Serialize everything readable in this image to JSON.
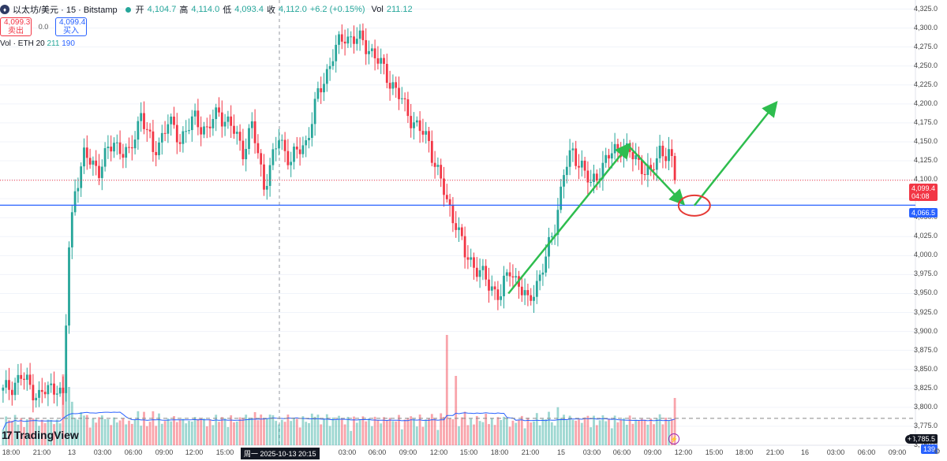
{
  "header": {
    "symbol_glyph": "♦",
    "title": "以太坊/美元 · 15 · Bitstamp",
    "open_label": "开",
    "open": "4,104.7",
    "high_label": "高",
    "high": "4,114.0",
    "low_label": "低",
    "low": "4,093.4",
    "close_label": "收",
    "close": "4,112.0",
    "change": "+6.2 (+0.15%)",
    "vol_label": "Vol",
    "vol": "211.12"
  },
  "trade": {
    "sell_price": "4,099.3",
    "sell_label": "卖出",
    "spread": "0.0",
    "buy_price": "4,099.4",
    "buy_label": "买入"
  },
  "volume_indicator": {
    "label": "Vol · ETH 20",
    "value1": "211",
    "value2": "190"
  },
  "watermark": {
    "logo": "17",
    "text": "TradingView"
  },
  "axis": {
    "y_ticks": [
      "4,325.0",
      "4,300.0",
      "4,275.0",
      "4,250.0",
      "4,225.0",
      "4,200.0",
      "4,175.0",
      "4,150.0",
      "4,125.0",
      "4,100.0",
      "4,075.0",
      "4,050.0",
      "4,025.0",
      "4,000.0",
      "3,975.0",
      "3,950.0",
      "3,925.0",
      "3,900.0",
      "3,875.0",
      "3,850.0",
      "3,825.0",
      "3,800.0",
      "3,775.0",
      "3,750.0"
    ],
    "x_ticks": [
      "18:00",
      "21:00",
      "13",
      "03:00",
      "06:00",
      "09:00",
      "12:00",
      "15:00",
      "03:00",
      "06:00",
      "09:00",
      "12:00",
      "15:00",
      "18:00",
      "21:00",
      "15",
      "03:00",
      "06:00",
      "09:00",
      "12:00",
      "15:00",
      "18:00",
      "21:00",
      "16",
      "03:00",
      "06:00",
      "09:00"
    ],
    "cursor_date": "周一 2025-10-13  20:15"
  },
  "price_tags": {
    "last_price": "4,099.4",
    "countdown": "04:08",
    "line_price": "4,066.5",
    "cursor_price": "3,785.5",
    "vol_tag": "139"
  },
  "colors": {
    "up": "#26a69a",
    "down": "#f23645",
    "hline": "#2962ff",
    "arrow": "#2ebd4e",
    "circle": "#e53935",
    "vol_ma": "#2962ff"
  },
  "chart_data": {
    "type": "candlestick",
    "symbol": "以太坊/美元",
    "interval": "15",
    "exchange": "Bitstamp",
    "y_range": [
      3750,
      4337
    ],
    "x_tick_labels": [
      "18:00",
      "21:00",
      "13",
      "03:00",
      "06:00",
      "09:00",
      "12:00",
      "15:00",
      "03:00",
      "06:00",
      "09:00",
      "12:00",
      "15:00",
      "18:00",
      "21:00",
      "15",
      "03:00",
      "06:00",
      "09:00",
      "12:00",
      "15:00",
      "18:00",
      "21:00",
      "16",
      "03:00",
      "06:00",
      "09:00"
    ],
    "price_path": [
      [
        0,
        3820
      ],
      [
        6,
        3840
      ],
      [
        12,
        3815
      ],
      [
        18,
        3830
      ],
      [
        20,
        3810
      ],
      [
        22,
        4010
      ],
      [
        24,
        4090
      ],
      [
        27,
        4130
      ],
      [
        32,
        4115
      ],
      [
        37,
        4150
      ],
      [
        42,
        4130
      ],
      [
        46,
        4190
      ],
      [
        50,
        4135
      ],
      [
        55,
        4175
      ],
      [
        59,
        4155
      ],
      [
        64,
        4180
      ],
      [
        68,
        4165
      ],
      [
        72,
        4190
      ],
      [
        76,
        4170
      ],
      [
        80,
        4140
      ],
      [
        83,
        4170
      ],
      [
        87,
        4095
      ],
      [
        89,
        4115
      ],
      [
        92,
        4155
      ],
      [
        96,
        4125
      ],
      [
        101,
        4150
      ],
      [
        105,
        4210
      ],
      [
        110,
        4265
      ],
      [
        114,
        4290
      ],
      [
        118,
        4285
      ],
      [
        122,
        4275
      ],
      [
        126,
        4250
      ],
      [
        130,
        4225
      ],
      [
        134,
        4195
      ],
      [
        138,
        4170
      ],
      [
        142,
        4150
      ],
      [
        145,
        4110
      ],
      [
        148,
        4070
      ],
      [
        151,
        4045
      ],
      [
        154,
        4000
      ],
      [
        158,
        3985
      ],
      [
        162,
        3960
      ],
      [
        166,
        3950
      ],
      [
        169,
        3980
      ],
      [
        172,
        3965
      ],
      [
        175,
        3935
      ],
      [
        178,
        3965
      ],
      [
        181,
        3995
      ],
      [
        184,
        4040
      ],
      [
        187,
        4110
      ],
      [
        190,
        4135
      ],
      [
        193,
        4120
      ],
      [
        196,
        4090
      ],
      [
        199,
        4115
      ],
      [
        202,
        4130
      ],
      [
        206,
        4145
      ],
      [
        210,
        4130
      ],
      [
        213,
        4120
      ],
      [
        216,
        4105
      ],
      [
        219,
        4140
      ],
      [
        222,
        4135
      ],
      [
        224,
        4101
      ]
    ],
    "horizontal_lines": [
      {
        "price": 4066.5,
        "color": "#2962ff",
        "style": "solid"
      },
      {
        "price": 4099.4,
        "color": "#f23645",
        "style": "dotted"
      },
      {
        "price": 3785.5,
        "color": "#888888",
        "style": "dashed"
      }
    ],
    "annotations": [
      {
        "type": "arrow",
        "from": [
          3950,
          169
        ],
        "to": [
          4145,
          209
        ]
      },
      {
        "type": "arrow",
        "from": [
          4145,
          209
        ],
        "to": [
          4070,
          227
        ]
      },
      {
        "type": "arrow",
        "from": [
          4066,
          231
        ],
        "to": [
          4200,
          258
        ]
      },
      {
        "type": "ellipse",
        "center": [
          4066,
          231
        ]
      }
    ],
    "volume_ma_period": 20,
    "last_price": 4099.4,
    "last_volume": 139
  }
}
